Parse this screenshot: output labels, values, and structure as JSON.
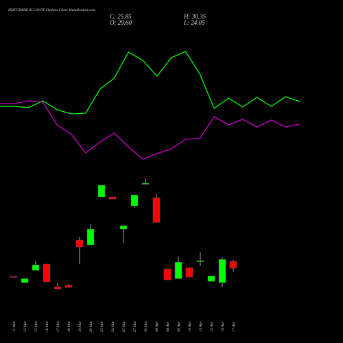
{
  "chart_data": [
    {
      "type": "candlestick",
      "title": "HDFCBANK 815.00 PE Options Chart Munafasutra.com",
      "ohlc_labels": {
        "close": "C: 25.85",
        "high": "H: 30.35",
        "open": "O: 29.60",
        "low": "L: 24.05"
      },
      "categories": [
        "11 Mar",
        "12 Mar",
        "13 Mar",
        "16 Mar",
        "17 Mar",
        "18 Mar",
        "19 Mar",
        "20 Mar",
        "23 Mar",
        "24 Mar",
        "25 Mar",
        "27 Mar",
        "30 Mar",
        "06 Apr",
        "08 Apr",
        "09 Apr",
        "10 Apr",
        "13 Apr",
        "15 Apr",
        "16 Apr",
        "17 Apr"
      ],
      "open": [
        21.4,
        18.0,
        24.7,
        28.1,
        15.7,
        16.5,
        41.2,
        38.6,
        64.8,
        64.8,
        47.2,
        59.9,
        71.9,
        64.4,
        25.5,
        20.2,
        26.2,
        29.6,
        18.7,
        18.0,
        29.6
      ],
      "high": [
        21.4,
        20.2,
        29.6,
        28.1,
        18.0,
        17.2,
        43.1,
        49.8,
        71.2,
        64.8,
        49.1,
        65.9,
        74.9,
        66.3,
        25.5,
        32.2,
        26.2,
        34.5,
        21.7,
        31.8,
        30.35
      ],
      "low": [
        21.2,
        18.0,
        24.7,
        18.4,
        14.6,
        15.4,
        28.1,
        38.6,
        64.8,
        63.7,
        39.7,
        58.8,
        71.9,
        50.9,
        19.5,
        20.2,
        21.0,
        27.0,
        18.7,
        15.7,
        24.05
      ],
      "close": [
        21.2,
        20.2,
        27.7,
        18.4,
        14.6,
        15.4,
        37.5,
        47.2,
        71.2,
        63.7,
        49.1,
        65.9,
        72.3,
        50.9,
        19.5,
        29.2,
        21.0,
        30.0,
        21.7,
        30.7,
        25.85
      ],
      "up_color": "#00ff00",
      "down_color": "#ff0000",
      "ylim": [
        11.25,
        78.7
      ]
    },
    {
      "type": "line",
      "series": [
        {
          "color": "#00ff00",
          "values": [
            95,
            95,
            93,
            103,
            90,
            84,
            85,
            120,
            136,
            174,
            162,
            139,
            166,
            175,
            142,
            92,
            107,
            94,
            108,
            95,
            109,
            102
          ]
        },
        {
          "color": "#cc00cc",
          "values": [
            99,
            99,
            103,
            101,
            68,
            54,
            27,
            43,
            56,
            36,
            18,
            26,
            33,
            47,
            48,
            80,
            68,
            76,
            65,
            75,
            65,
            69
          ]
        }
      ],
      "ylim": [
        0,
        230
      ]
    }
  ]
}
